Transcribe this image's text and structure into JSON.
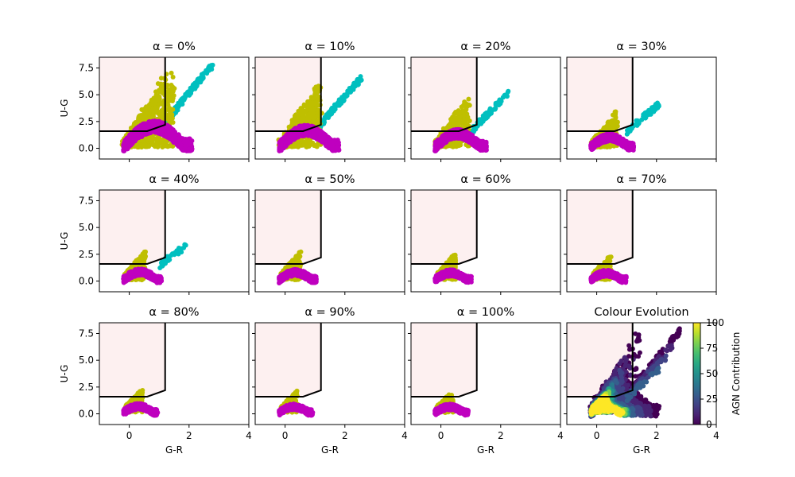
{
  "figure": {
    "xlabel": "G-R",
    "ylabel": "U-G",
    "xlim": [
      -1,
      4
    ],
    "ylim": [
      -1,
      8.5
    ],
    "xticks": [
      0,
      2,
      4
    ],
    "yticks": [
      0.0,
      2.5,
      5.0,
      7.5
    ],
    "ytick_labels": [
      "0.0",
      "2.5",
      "5.0",
      "7.5"
    ],
    "colors": {
      "region_fill": "#fdf0f0",
      "boundary": "#000000",
      "population_a": "#bfbf00",
      "population_b": "#00bfbf",
      "population_c": "#bf00bf"
    }
  },
  "chart_data": [
    {
      "type": "scatter",
      "title": "α = 0%",
      "alpha_pct": 0
    },
    {
      "type": "scatter",
      "title": "α = 10%",
      "alpha_pct": 10
    },
    {
      "type": "scatter",
      "title": "α = 20%",
      "alpha_pct": 20
    },
    {
      "type": "scatter",
      "title": "α = 30%",
      "alpha_pct": 30
    },
    {
      "type": "scatter",
      "title": "α = 40%",
      "alpha_pct": 40
    },
    {
      "type": "scatter",
      "title": "α = 50%",
      "alpha_pct": 50
    },
    {
      "type": "scatter",
      "title": "α = 60%",
      "alpha_pct": 60
    },
    {
      "type": "scatter",
      "title": "α = 70%",
      "alpha_pct": 70
    },
    {
      "type": "scatter",
      "title": "α = 80%",
      "alpha_pct": 80
    },
    {
      "type": "scatter",
      "title": "α = 90%",
      "alpha_pct": 90
    },
    {
      "type": "scatter",
      "title": "α = 100%",
      "alpha_pct": 100
    },
    {
      "type": "scatter",
      "title": "Colour Evolution",
      "colormap": "viridis"
    }
  ],
  "boundary_line": [
    [
      -1,
      1.6
    ],
    [
      0.6,
      1.6
    ],
    [
      1.2,
      2.2
    ],
    [
      1.2,
      8.5
    ]
  ],
  "colorbar": {
    "label": "AGN Contribution",
    "range": [
      0,
      100
    ],
    "ticks": [
      "0",
      "25",
      "50",
      "75",
      "100"
    ]
  }
}
